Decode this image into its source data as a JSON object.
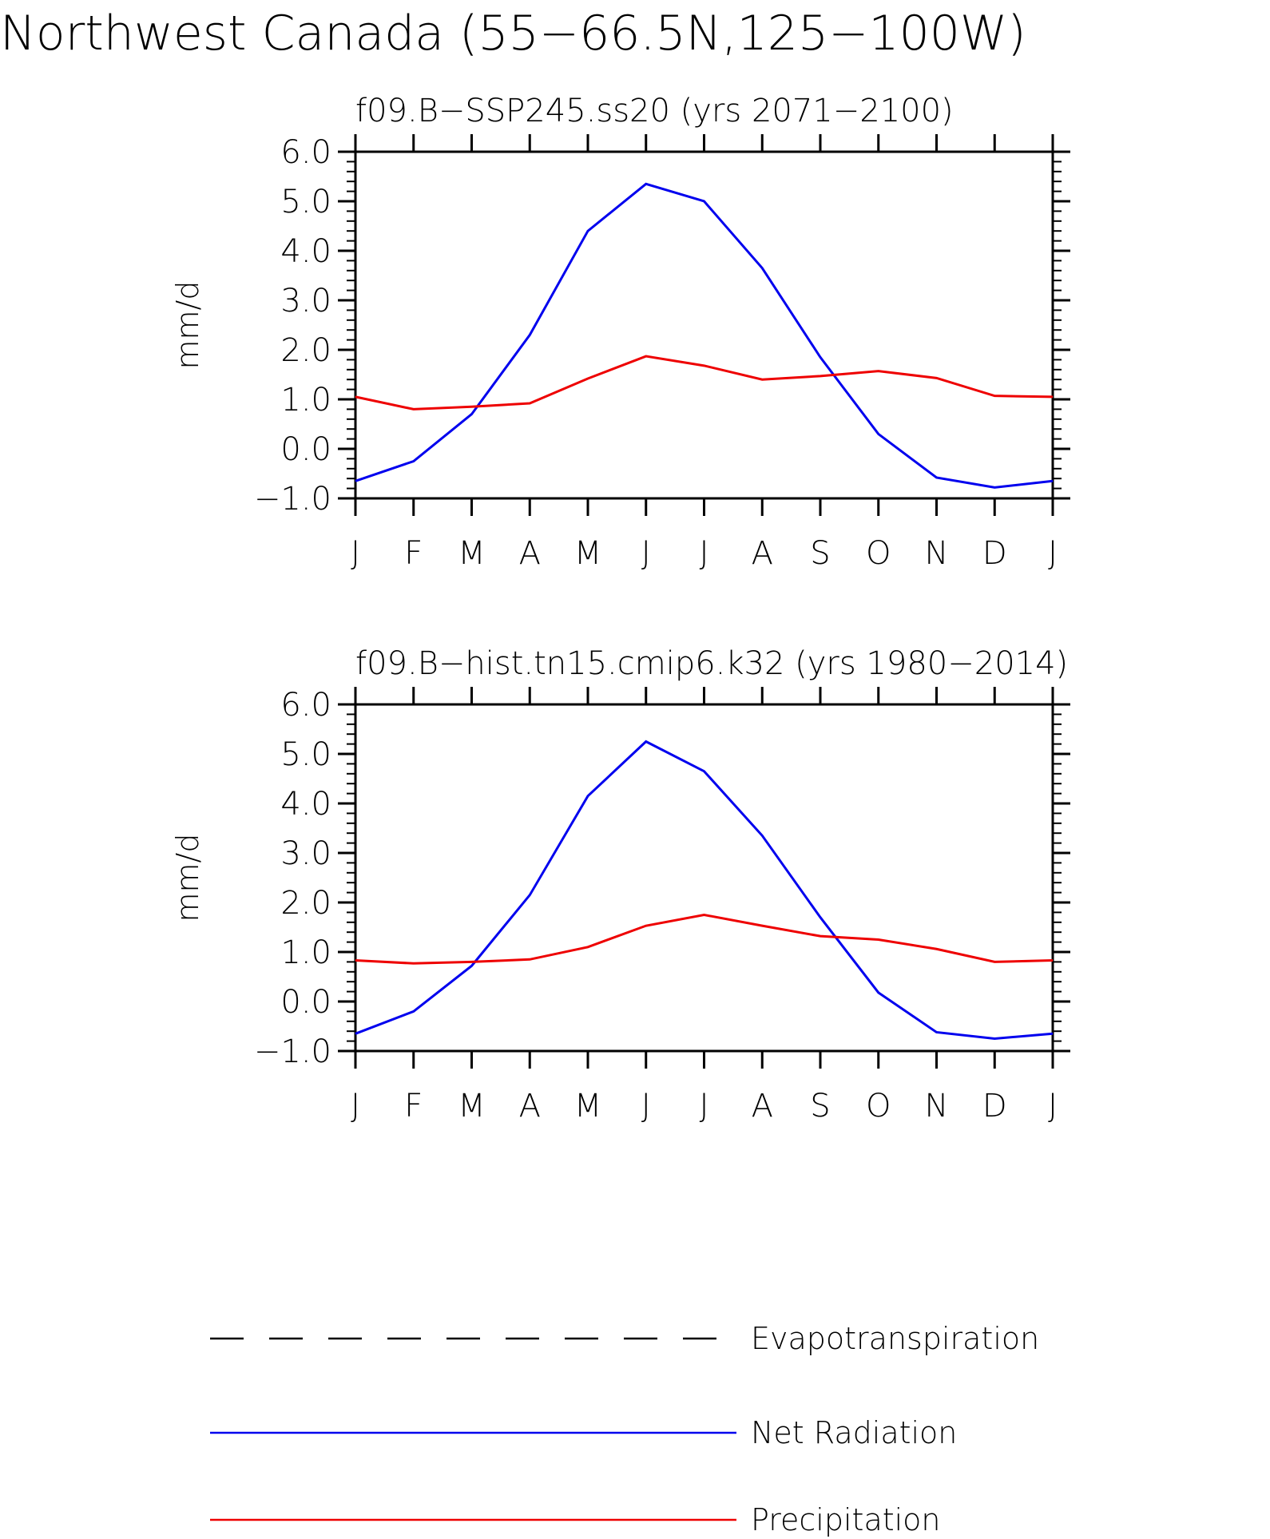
{
  "title": "Northwest Canada (55−66.5N,125−100W)",
  "colors": {
    "net_radiation": "#0000ee",
    "precipitation": "#ee0000",
    "evapotranspiration": "#000000",
    "axis": "#000000"
  },
  "legend": [
    {
      "name": "Evapotranspiration",
      "style": "dashed",
      "color": "#000000"
    },
    {
      "name": "Net Radiation",
      "style": "solid",
      "color": "#0000ee"
    },
    {
      "name": "Precipitation",
      "style": "solid",
      "color": "#ee0000"
    }
  ],
  "chart_data": [
    {
      "type": "line",
      "title": "f09.B−SSP245.ss20 (yrs 2071−2100)",
      "ylabel": "mm/d",
      "xlabel": "",
      "categories": [
        "J",
        "F",
        "M",
        "A",
        "M",
        "J",
        "J",
        "A",
        "S",
        "O",
        "N",
        "D",
        "J"
      ],
      "ylim": [
        -1.0,
        6.0
      ],
      "yticks": [
        "−1.0",
        "0.0",
        "1.0",
        "2.0",
        "3.0",
        "4.0",
        "5.0",
        "6.0"
      ],
      "grid": false,
      "series": [
        {
          "name": "Net Radiation",
          "color": "#0000ee",
          "values": [
            -0.65,
            -0.25,
            0.7,
            2.3,
            4.4,
            5.35,
            5.0,
            3.65,
            1.85,
            0.3,
            -0.58,
            -0.78,
            -0.65
          ]
        },
        {
          "name": "Precipitation",
          "color": "#ee0000",
          "values": [
            1.05,
            0.8,
            0.85,
            0.92,
            1.42,
            1.87,
            1.68,
            1.4,
            1.47,
            1.57,
            1.43,
            1.07,
            1.05
          ]
        }
      ]
    },
    {
      "type": "line",
      "title": "f09.B−hist.tn15.cmip6.k32 (yrs 1980−2014)",
      "ylabel": "mm/d",
      "xlabel": "",
      "categories": [
        "J",
        "F",
        "M",
        "A",
        "M",
        "J",
        "J",
        "A",
        "S",
        "O",
        "N",
        "D",
        "J"
      ],
      "ylim": [
        -1.0,
        6.0
      ],
      "yticks": [
        "−1.0",
        "0.0",
        "1.0",
        "2.0",
        "3.0",
        "4.0",
        "5.0",
        "6.0"
      ],
      "grid": false,
      "series": [
        {
          "name": "Net Radiation",
          "color": "#0000ee",
          "values": [
            -0.65,
            -0.2,
            0.72,
            2.15,
            4.15,
            5.25,
            4.65,
            3.35,
            1.7,
            0.18,
            -0.62,
            -0.75,
            -0.65
          ]
        },
        {
          "name": "Precipitation",
          "color": "#ee0000",
          "values": [
            0.83,
            0.77,
            0.8,
            0.85,
            1.1,
            1.53,
            1.75,
            1.53,
            1.32,
            1.25,
            1.06,
            0.8,
            0.83
          ]
        }
      ]
    }
  ]
}
